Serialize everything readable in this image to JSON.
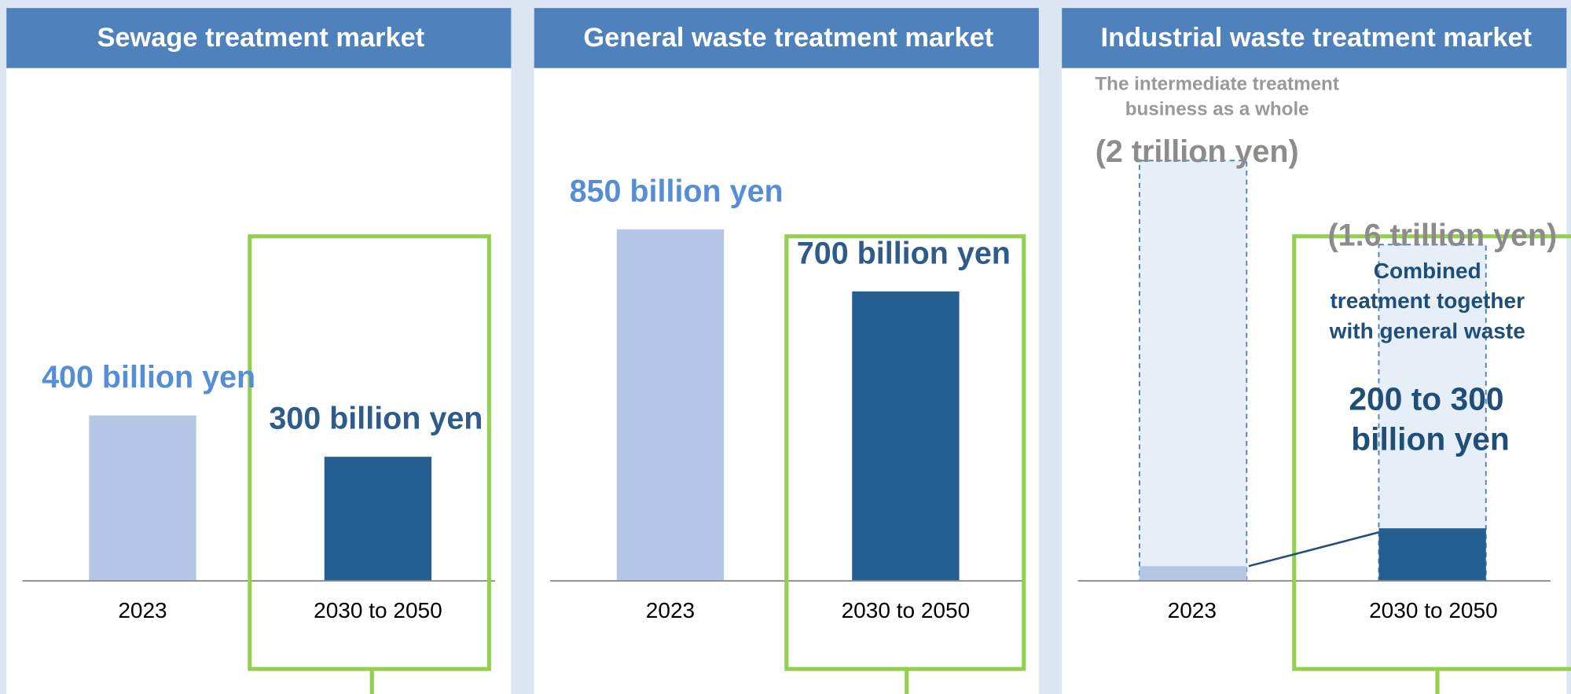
{
  "chart_data": [
    {
      "type": "bar",
      "title": "Sewage treatment market",
      "categories": [
        "2023",
        "2030 to 2050"
      ],
      "values": [
        400,
        300
      ],
      "value_labels": [
        "400 billion yen",
        "300 billion yen"
      ],
      "colors": [
        "#b4c7e7",
        "#255e91"
      ],
      "label_colors": [
        "#558ed5",
        "#2e5c8a"
      ],
      "ylim": [
        0,
        1240
      ]
    },
    {
      "type": "bar",
      "title": "General waste treatment market",
      "categories": [
        "2023",
        "2030 to 2050"
      ],
      "values": [
        850,
        700
      ],
      "value_labels": [
        "850 billion yen",
        "700 billion yen"
      ],
      "colors": [
        "#b4c7e7",
        "#255e91"
      ],
      "label_colors": [
        "#558ed5",
        "#2e5c8a"
      ],
      "ylim": [
        0,
        1240
      ]
    },
    {
      "type": "overlay-bar",
      "title": "Industrial waste treatment market",
      "categories": [
        "2023",
        "2030 to 2050"
      ],
      "series": [
        {
          "color": "#e6eef8",
          "values": [
            2000,
            1600
          ],
          "value_labels": [
            "(2 trillion yen)",
            "(1.6 trillion yen)"
          ],
          "dashed": true
        },
        {
          "colors": [
            "#b4c7e7",
            "#255e91"
          ],
          "values": [
            70,
            250
          ]
        }
      ],
      "annotations": [
        "The intermediate treatment",
        "business as a whole",
        "Combined",
        "treatment together",
        "with general waste",
        "200 to 300",
        "billion yen"
      ],
      "ylim": [
        0,
        2440
      ]
    }
  ]
}
